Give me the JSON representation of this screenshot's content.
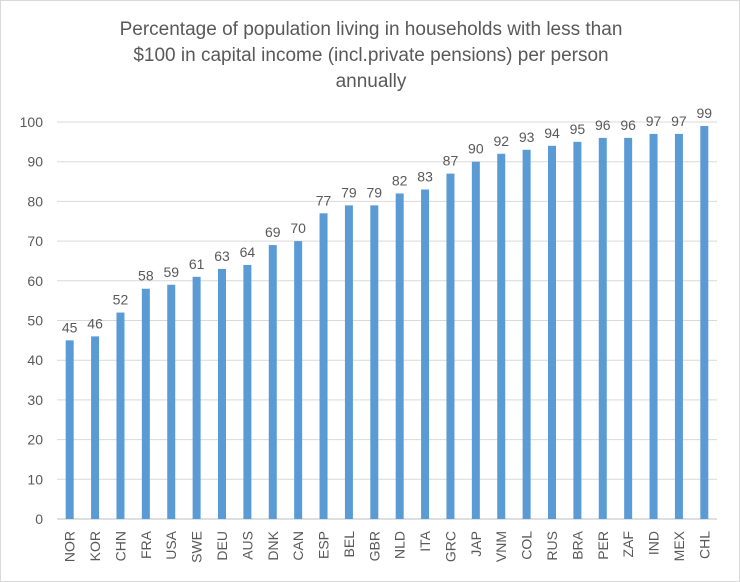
{
  "chart_data": {
    "type": "bar",
    "title_lines": [
      "Percentage of population living in households with less than",
      "$100 in capital income (incl.private pensions) per person",
      "annually"
    ],
    "xlabel": "",
    "ylabel": "",
    "ylim": [
      0,
      100
    ],
    "yticks": [
      0,
      10,
      20,
      30,
      40,
      50,
      60,
      70,
      80,
      90,
      100
    ],
    "grid": true,
    "legend": "none",
    "bar_color": "#5b9bd5",
    "categories": [
      "NOR",
      "KOR",
      "CHN",
      "FRA",
      "USA",
      "SWE",
      "DEU",
      "AUS",
      "DNK",
      "CAN",
      "ESP",
      "BEL",
      "GBR",
      "NLD",
      "ITA",
      "GRC",
      "JAP",
      "VNM",
      "COL",
      "RUS",
      "BRA",
      "PER",
      "ZAF",
      "IND",
      "MEX",
      "CHL"
    ],
    "values": [
      45,
      46,
      52,
      58,
      59,
      61,
      63,
      64,
      69,
      70,
      77,
      79,
      79,
      82,
      83,
      87,
      90,
      92,
      93,
      94,
      95,
      96,
      96,
      97,
      97,
      99
    ],
    "data_labels": true
  }
}
